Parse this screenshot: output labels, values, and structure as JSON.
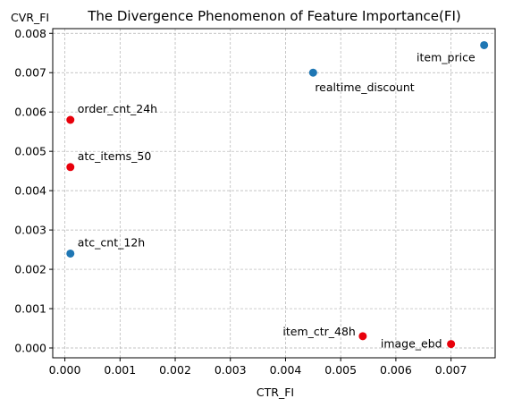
{
  "chart_data": {
    "type": "scatter",
    "title": "The Divergence Phenomenon of Feature Importance(FI)",
    "xlabel": "CTR_FI",
    "ylabel": "CVR_FI",
    "xlim": [
      -0.00022,
      0.0078
    ],
    "ylim": [
      -0.00025,
      0.00812
    ],
    "xticks": [
      "0.000",
      "0.001",
      "0.002",
      "0.003",
      "0.004",
      "0.005",
      "0.006",
      "0.007"
    ],
    "yticks": [
      "0.000",
      "0.001",
      "0.002",
      "0.003",
      "0.004",
      "0.005",
      "0.006",
      "0.007",
      "0.008"
    ],
    "grid": true,
    "colors": {
      "blue": "#1f77b4",
      "red": "#e8000b"
    },
    "points": [
      {
        "label": "item_price",
        "x": 0.0076,
        "y": 0.0077,
        "color": "#1f77b4",
        "label_anchor": "end"
      },
      {
        "label": "realtime_discount",
        "x": 0.0045,
        "y": 0.007,
        "color": "#1f77b4",
        "label_anchor": "start-below"
      },
      {
        "label": "order_cnt_24h",
        "x": 0.0001,
        "y": 0.0058,
        "color": "#e8000b",
        "label_anchor": "start-above"
      },
      {
        "label": "atc_items_50",
        "x": 0.0001,
        "y": 0.0046,
        "color": "#e8000b",
        "label_anchor": "start-above"
      },
      {
        "label": "atc_cnt_12h",
        "x": 0.0001,
        "y": 0.0024,
        "color": "#1f77b4",
        "label_anchor": "start-above"
      },
      {
        "label": "item_ctr_48h",
        "x": 0.0054,
        "y": 0.0003,
        "color": "#e8000b",
        "label_anchor": "end-above"
      },
      {
        "label": "image_ebd",
        "x": 0.007,
        "y": 0.0001,
        "color": "#e8000b",
        "label_anchor": "end"
      }
    ]
  }
}
